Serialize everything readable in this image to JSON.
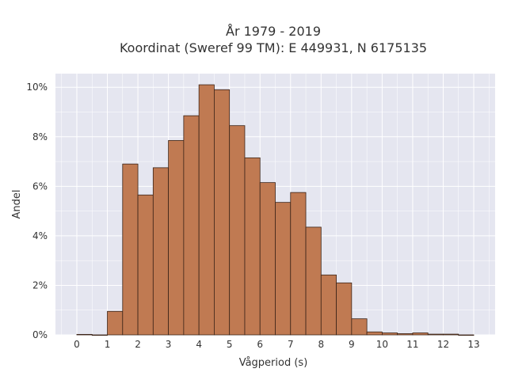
{
  "chart_data": {
    "type": "bar",
    "title_line1": "År 1979 - 2019",
    "title_line2": "Koordinat (Sweref 99 TM): E 449931, N 6175135",
    "xlabel": "Vågperiod (s)",
    "ylabel": "Andel",
    "bin_width": 0.5,
    "x": [
      0,
      0.5,
      1,
      1.5,
      2,
      2.5,
      3,
      3.5,
      4,
      4.5,
      5,
      5.5,
      6,
      6.5,
      7,
      7.5,
      8,
      8.5,
      9,
      9.5,
      10,
      10.5,
      11,
      11.5,
      12,
      12.5
    ],
    "values": [
      0.02,
      0.0,
      0.95,
      6.9,
      5.65,
      6.75,
      7.85,
      8.85,
      10.1,
      9.9,
      8.45,
      7.15,
      6.15,
      5.35,
      5.75,
      4.35,
      2.42,
      2.1,
      0.65,
      0.12,
      0.08,
      0.05,
      0.08,
      0.03,
      0.03,
      0.0
    ],
    "xlim": [
      -0.7,
      13.7
    ],
    "ylim": [
      0,
      10.55
    ],
    "xticks": [
      0,
      1,
      2,
      3,
      4,
      5,
      6,
      7,
      8,
      9,
      10,
      11,
      12,
      13
    ],
    "xtick_labels": [
      "0",
      "1",
      "2",
      "3",
      "4",
      "5",
      "6",
      "7",
      "8",
      "9",
      "10",
      "11",
      "12",
      "13"
    ],
    "yticks": [
      0,
      2,
      4,
      6,
      8,
      10
    ],
    "ytick_labels": [
      "0%",
      "2%",
      "4%",
      "6%",
      "8%",
      "10%"
    ],
    "grid": true,
    "colors": {
      "plot_bg": "#e5e6f0",
      "bar_fill": "#c07a52",
      "bar_edge": "#3b2418",
      "grid": "#ffffff"
    }
  }
}
